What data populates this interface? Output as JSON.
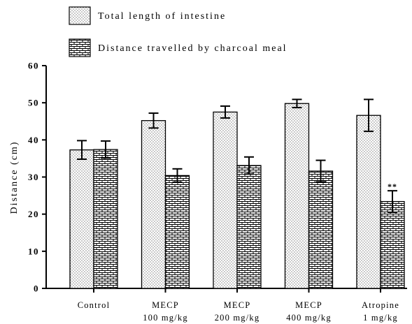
{
  "chart_data": {
    "type": "bar",
    "title": "",
    "xlabel": "",
    "ylabel": "Distance (cm)",
    "ylim": [
      0,
      60
    ],
    "yticks": [
      0,
      10,
      20,
      30,
      40,
      50,
      60
    ],
    "grid": false,
    "legend_position": "top-left",
    "categories": [
      [
        "Control"
      ],
      [
        "MECP",
        "100 mg/kg"
      ],
      [
        "MECP",
        "200 mg/kg"
      ],
      [
        "MECP",
        "400 mg/kg"
      ],
      [
        "Atropine",
        "1 mg/kg"
      ]
    ],
    "series": [
      {
        "name": "Total length of intestine",
        "pattern": "dots",
        "values": [
          37.3,
          45.2,
          47.5,
          49.8,
          46.6
        ],
        "errors": [
          2.5,
          2.0,
          1.6,
          1.1,
          4.3
        ]
      },
      {
        "name": "Distance travelled by charcoal meal",
        "pattern": "bricks",
        "values": [
          37.4,
          30.4,
          33.1,
          31.6,
          23.4
        ],
        "errors": [
          2.3,
          1.8,
          2.3,
          2.9,
          2.9
        ]
      }
    ],
    "annotations": [
      {
        "text": "**",
        "category_index": 4,
        "series_index": 1
      }
    ]
  }
}
